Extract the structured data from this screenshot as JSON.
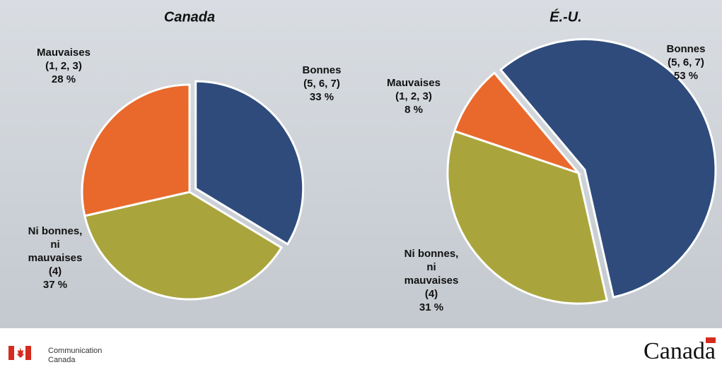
{
  "chart_data": [
    {
      "type": "pie",
      "title": "Canada",
      "categories": [
        [
          "Bonnes",
          "(5, 6, 7)"
        ],
        [
          "Ni bonnes,",
          "ni",
          "mauvaises",
          "(4)"
        ],
        [
          "Mauvaises",
          "(1, 2, 3)"
        ]
      ],
      "values": [
        33,
        37,
        28
      ],
      "value_labels": [
        "33 %",
        "37 %",
        "28 %"
      ],
      "colors": [
        "#2f4b7c",
        "#a9a53c",
        "#e8692b"
      ]
    },
    {
      "type": "pie",
      "title": "É.-U.",
      "categories": [
        [
          "Bonnes",
          "(5, 6, 7)"
        ],
        [
          "Ni bonnes,",
          "ni",
          "mauvaises",
          "(4)"
        ],
        [
          "Mauvaises",
          "(1, 2, 3)"
        ]
      ],
      "values": [
        53,
        31,
        8
      ],
      "value_labels": [
        "53 %",
        "31 %",
        "8 %"
      ],
      "colors": [
        "#2f4b7c",
        "#a9a53c",
        "#e8692b"
      ]
    }
  ],
  "footer": {
    "org": [
      "Communication",
      "Canada"
    ],
    "wordmark": "Canada"
  }
}
